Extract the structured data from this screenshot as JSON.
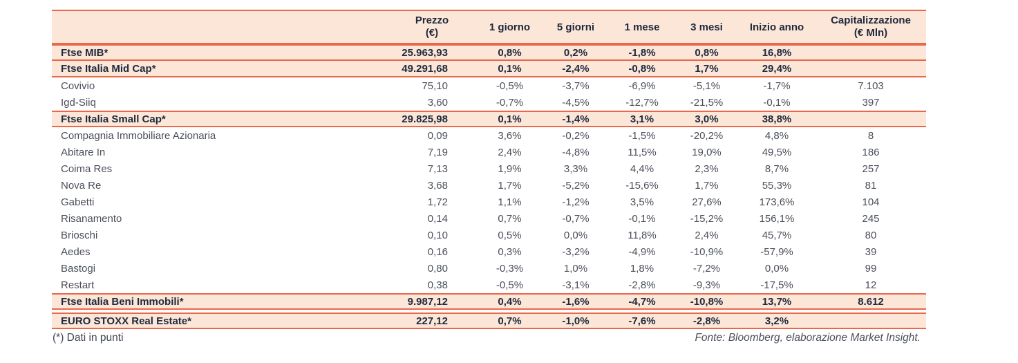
{
  "colors": {
    "accent_border": "#E8684C",
    "row_highlight": "#FBE6D8",
    "text_dark": "#202A3C",
    "text_body": "#4A4F59"
  },
  "table": {
    "header": {
      "name": "",
      "prezzo": "Prezzo\n(€)",
      "g1": "1 giorno",
      "g5": "5 giorni",
      "m1": "1 mese",
      "m3": "3 mesi",
      "ytd": "Inizio anno",
      "cap": "Capitalizzazione\n(€ Mln)"
    },
    "rows": [
      {
        "type": "index",
        "name": "Ftse MIB*",
        "values": [
          "25.963,93",
          "0,8%",
          "0,2%",
          "-1,8%",
          "0,8%",
          "16,8%",
          ""
        ]
      },
      {
        "type": "index",
        "name": "Ftse Italia Mid Cap*",
        "values": [
          "49.291,68",
          "0,1%",
          "-2,4%",
          "-0,8%",
          "1,7%",
          "29,4%",
          ""
        ]
      },
      {
        "type": "stock",
        "name": "Covivio",
        "values": [
          "75,10",
          "-0,5%",
          "-3,7%",
          "-6,9%",
          "-5,1%",
          "-1,7%",
          "7.103"
        ]
      },
      {
        "type": "stock",
        "name": "Igd-Siiq",
        "values": [
          "3,60",
          "-0,7%",
          "-4,5%",
          "-12,7%",
          "-21,5%",
          "-0,1%",
          "397"
        ]
      },
      {
        "type": "index",
        "name": "Ftse Italia Small Cap*",
        "values": [
          "29.825,98",
          "0,1%",
          "-1,4%",
          "3,1%",
          "3,0%",
          "38,8%",
          ""
        ]
      },
      {
        "type": "stock",
        "name": "Compagnia Immobiliare Azionaria",
        "values": [
          "0,09",
          "3,6%",
          "-0,2%",
          "-1,5%",
          "-20,2%",
          "4,8%",
          "8"
        ]
      },
      {
        "type": "stock",
        "name": "Abitare In",
        "values": [
          "7,19",
          "2,4%",
          "-4,8%",
          "11,5%",
          "19,0%",
          "49,5%",
          "186"
        ]
      },
      {
        "type": "stock",
        "name": "Coima Res",
        "values": [
          "7,13",
          "1,9%",
          "3,3%",
          "4,4%",
          "2,3%",
          "8,7%",
          "257"
        ]
      },
      {
        "type": "stock",
        "name": "Nova Re",
        "values": [
          "3,68",
          "1,7%",
          "-5,2%",
          "-15,6%",
          "1,7%",
          "55,3%",
          "81"
        ]
      },
      {
        "type": "stock",
        "name": "Gabetti",
        "values": [
          "1,72",
          "1,1%",
          "-1,2%",
          "3,5%",
          "27,6%",
          "173,6%",
          "104"
        ]
      },
      {
        "type": "stock",
        "name": "Risanamento",
        "values": [
          "0,14",
          "0,7%",
          "-0,7%",
          "-0,1%",
          "-15,2%",
          "156,1%",
          "245"
        ]
      },
      {
        "type": "stock",
        "name": "Brioschi",
        "values": [
          "0,10",
          "0,5%",
          "0,0%",
          "11,8%",
          "2,4%",
          "45,7%",
          "80"
        ]
      },
      {
        "type": "stock",
        "name": "Aedes",
        "values": [
          "0,16",
          "0,3%",
          "-3,2%",
          "-4,9%",
          "-10,9%",
          "-57,9%",
          "39"
        ]
      },
      {
        "type": "stock",
        "name": "Bastogi",
        "values": [
          "0,80",
          "-0,3%",
          "1,0%",
          "1,8%",
          "-7,2%",
          "0,0%",
          "99"
        ]
      },
      {
        "type": "stock",
        "name": "Restart",
        "values": [
          "0,38",
          "-0,5%",
          "-3,1%",
          "-2,8%",
          "-9,3%",
          "-17,5%",
          "12"
        ]
      },
      {
        "type": "index",
        "name": "Ftse Italia Beni Immobili*",
        "values": [
          "9.987,12",
          "0,4%",
          "-1,6%",
          "-4,7%",
          "-10,8%",
          "13,7%",
          "8.612"
        ]
      },
      {
        "type": "spacer"
      },
      {
        "type": "index",
        "name": "EURO STOXX Real Estate*",
        "values": [
          "227,12",
          "0,7%",
          "-1,0%",
          "-7,6%",
          "-2,8%",
          "3,2%",
          ""
        ]
      }
    ]
  },
  "footer": {
    "note": "(*) Dati in punti",
    "source": "Fonte: Bloomberg, elaborazione Market Insight."
  }
}
